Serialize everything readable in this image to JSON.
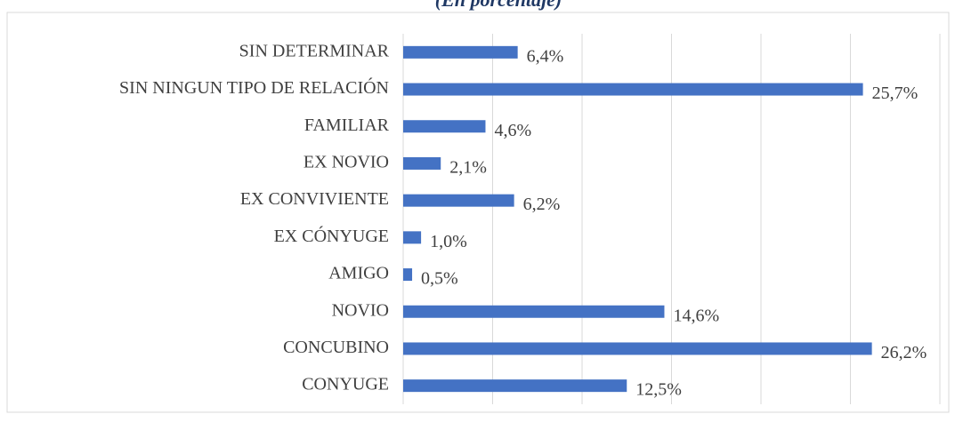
{
  "chart_data": {
    "type": "bar",
    "orientation": "horizontal",
    "subtitle": "(En porcentaje)",
    "categories": [
      "SIN DETERMINAR",
      "SIN NINGUN TIPO DE RELACIÓN",
      "FAMILIAR",
      "EX NOVIO",
      "EX CONVIVIENTE",
      "EX CÓNYUGE",
      "AMIGO",
      "NOVIO",
      "CONCUBINO",
      "CONYUGE"
    ],
    "values": [
      6.4,
      25.7,
      4.6,
      2.1,
      6.2,
      1.0,
      0.5,
      14.6,
      26.2,
      12.5
    ],
    "value_labels": [
      "6,4%",
      "25,7%",
      "4,6%",
      "2,1%",
      "6,2%",
      "1,0%",
      "0,5%",
      "14,6%",
      "26,2%",
      "12,5%"
    ],
    "color": "#4472c4",
    "xlim": [
      0,
      30
    ],
    "xticks": [
      0,
      5,
      10,
      15,
      20,
      25,
      30
    ],
    "grid": true
  }
}
